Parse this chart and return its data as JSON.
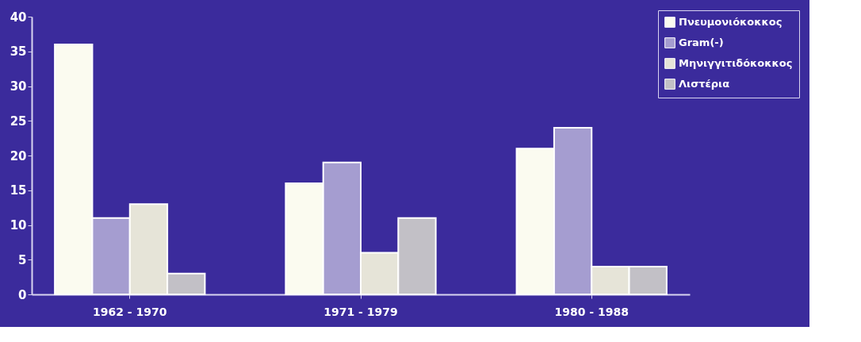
{
  "chart_data": {
    "type": "bar",
    "categories": [
      "1962 - 1970",
      "1971 - 1979",
      "1980 - 1988"
    ],
    "series": [
      {
        "name": "Πνευμονιόκοκκος",
        "color": "#fbfbf0",
        "values": [
          36,
          16,
          21
        ]
      },
      {
        "name": "Gram(-)",
        "color": "#a59dd0",
        "values": [
          11,
          19,
          24
        ]
      },
      {
        "name": "Μηνιγγιτιδόκοκκος",
        "color": "#e6e4d8",
        "values": [
          13,
          6,
          4
        ]
      },
      {
        "name": "Λιστέρια",
        "color": "#c2c0c6",
        "values": [
          3,
          11,
          4
        ]
      }
    ],
    "ylim": [
      0,
      40
    ],
    "yticks": [
      0,
      5,
      10,
      15,
      20,
      25,
      30,
      35,
      40
    ],
    "grid": false,
    "legend": "top right"
  }
}
